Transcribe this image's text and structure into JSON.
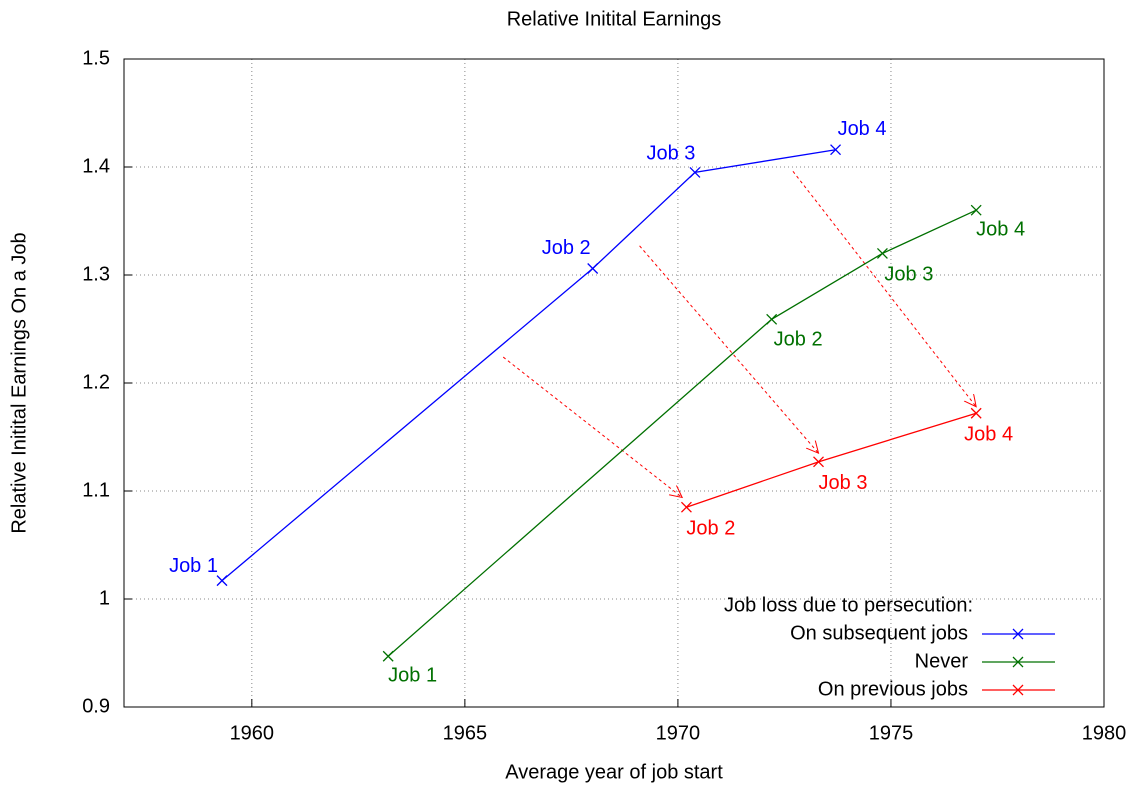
{
  "chart_data": {
    "type": "line",
    "title": "Relative Initital Earnings",
    "x_label": "Average year of job start",
    "y_label": "Relative Initital Earnings On a Job",
    "xlim": [
      1957,
      1980
    ],
    "xticks": [
      1960,
      1965,
      1970,
      1975,
      1980
    ],
    "ylim": [
      0.9,
      1.5
    ],
    "yticks": [
      0.9,
      1,
      1.1,
      1.2,
      1.3,
      1.4,
      1.5
    ],
    "grid": true,
    "legend_title": "Job loss due to persecution:",
    "legend_position": "lower right",
    "series": [
      {
        "name": "On subsequent jobs",
        "color": "#0000ff",
        "x": [
          1959.3,
          1968.0,
          1970.4,
          1973.7
        ],
        "values": [
          1.017,
          1.306,
          1.395,
          1.416
        ],
        "labels": [
          "Job 1",
          "Job 2",
          "Job 3",
          "Job 4"
        ]
      },
      {
        "name": "Never",
        "color": "#007000",
        "x": [
          1963.2,
          1972.2,
          1974.8,
          1977.0
        ],
        "values": [
          0.947,
          1.259,
          1.32,
          1.36
        ],
        "labels": [
          "Job 1",
          "Job 2",
          "Job 3",
          "Job 4"
        ]
      },
      {
        "name": "On previous jobs",
        "color": "#ff0000",
        "x": [
          1970.2,
          1973.3,
          1977.0
        ],
        "values": [
          1.085,
          1.127,
          1.172
        ],
        "labels": [
          "Job 2",
          "Job 3",
          "Job 4"
        ]
      }
    ],
    "arrows": [
      {
        "x": [
          1965.9,
          1970.1
        ],
        "y": [
          1.224,
          1.094
        ]
      },
      {
        "x": [
          1969.1,
          1973.3
        ],
        "y": [
          1.327,
          1.135
        ]
      },
      {
        "x": [
          1972.7,
          1977.0
        ],
        "y": [
          1.396,
          1.178
        ]
      }
    ]
  }
}
